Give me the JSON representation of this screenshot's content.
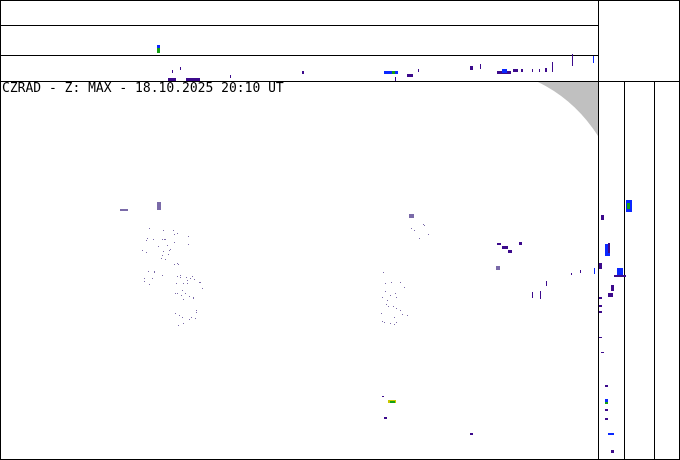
{
  "title": "CZRAD - Z: MAX - 18.10.2025 20:10 UT",
  "colors": {
    "background": "#ffffff",
    "frame": "#000000",
    "out_of_range": "#c0c0c0",
    "echo_weak": "#3c0a8c",
    "echo_light": "#7a6aa8",
    "echo_moderate": "#0a28ff",
    "echo_strong": "#14a014",
    "echo_yellow": "#c8c800"
  }
}
